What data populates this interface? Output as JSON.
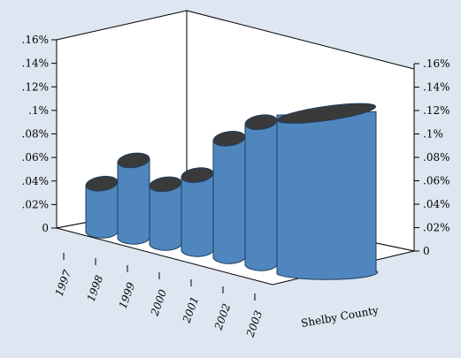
{
  "chart_data": {
    "type": "bar",
    "style": "3d-cylinder",
    "title": "",
    "xlabel": "",
    "ylabel": "",
    "categories": [
      "1997",
      "1998",
      "1999",
      "2000",
      "2001",
      "2002",
      "2003"
    ],
    "series": [
      {
        "name": "Shelby County",
        "values": [
          0.04,
          0.065,
          0.05,
          0.063,
          0.1,
          0.12,
          0.135
        ]
      }
    ],
    "ylim": [
      0,
      0.16
    ],
    "yticks": [
      "0",
      ".02%",
      ".04%",
      ".06%",
      ".08%",
      ".1%",
      ".12%",
      ".14%",
      ".16%"
    ],
    "grid": false,
    "colors": {
      "background": "#dde6f1",
      "bar_fill": "#4f86bd",
      "bar_top": "#3a3a3a",
      "wall": "#ffffff",
      "axis": "#000000"
    }
  }
}
